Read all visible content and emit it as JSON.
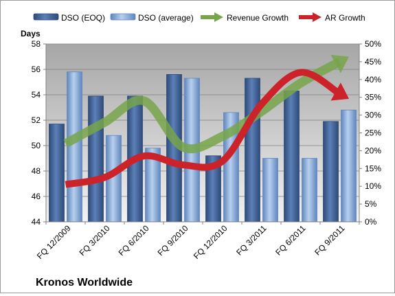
{
  "chart_data": {
    "type": "bar",
    "title": "Kronos Worldwide",
    "ylabel": "Days",
    "ylim": [
      44,
      58
    ],
    "y2lim": [
      0,
      0.5
    ],
    "yticks": [
      "44",
      "46",
      "48",
      "50",
      "52",
      "54",
      "56",
      "58"
    ],
    "y2ticks": [
      "0%",
      "5%",
      "10%",
      "15%",
      "20%",
      "25%",
      "30%",
      "35%",
      "40%",
      "45%",
      "50%"
    ],
    "categories": [
      "FQ 12/2009",
      "FQ 3/2010",
      "FQ 6/2010",
      "FQ 9/2010",
      "FQ 12/2010",
      "FQ 3/2011",
      "FQ 6/2011",
      "FQ 9/2011"
    ],
    "series": [
      {
        "name": "DSO (EOQ)",
        "kind": "bar",
        "axis": "left",
        "color": "#4a6aa0",
        "values": [
          51.7,
          53.9,
          53.9,
          55.6,
          49.2,
          55.3,
          54.3,
          51.9
        ]
      },
      {
        "name": "DSO (average)",
        "kind": "bar",
        "axis": "left",
        "color": "#8fb0dc",
        "values": [
          55.8,
          50.8,
          49.8,
          55.3,
          52.6,
          49.0,
          49.0,
          52.8
        ]
      },
      {
        "name": "Revenue Growth",
        "kind": "arrow-line",
        "axis": "right",
        "color": "#77a54a",
        "values": [
          0.22,
          0.28,
          0.34,
          0.21,
          0.24,
          0.31,
          0.39,
          0.45
        ]
      },
      {
        "name": "AR Growth",
        "kind": "arrow-line",
        "axis": "right",
        "color": "#cc2229",
        "values": [
          0.105,
          0.125,
          0.185,
          0.16,
          0.17,
          0.33,
          0.42,
          0.36
        ]
      }
    ],
    "grid": true,
    "legend_position": "top"
  }
}
